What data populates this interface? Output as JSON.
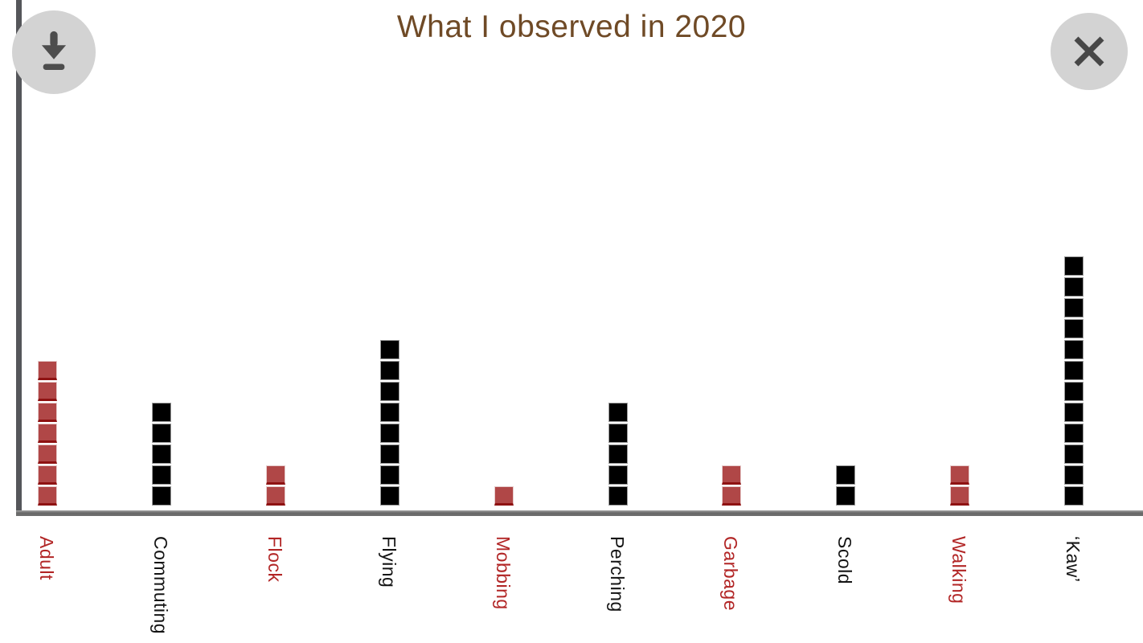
{
  "header": {
    "title": "What I observed in 2020",
    "download_button": {
      "icon": "download-icon"
    },
    "close_button": {
      "icon": "close-icon",
      "glyph": "✕"
    }
  },
  "chart_data": {
    "type": "bar",
    "subtype": "pictograph-stacked-unit-squares",
    "title": "What I observed in 2020",
    "categories": [
      "Adult",
      "Commuting",
      "Flock",
      "Flying",
      "Mobbing",
      "Perching",
      "Garbage",
      "Scold",
      "Walking",
      "‘Kaw’"
    ],
    "values": [
      7,
      5,
      2,
      8,
      1,
      5,
      2,
      2,
      2,
      12
    ],
    "colors": [
      "red",
      "black",
      "red",
      "black",
      "red",
      "black",
      "red",
      "black",
      "red",
      "black"
    ],
    "unit_per_square": 1,
    "ylim": [
      0,
      12
    ],
    "grid": false,
    "legend": false,
    "xlabel": "",
    "ylabel": "",
    "palette": {
      "red_square_fill": "#b04747",
      "red_square_edge": "#8e1212",
      "black_square_fill": "#000000",
      "black_square_edge": "#9b9b9b",
      "red_label": "#b22626",
      "black_label": "#141414",
      "title_brown": "#6f4a26",
      "axis_vertical_gray": "#55565a",
      "axis_horizontal_gray": "#6e6e6e",
      "button_circle_gray": "#d3d3d3",
      "button_icon_gray": "#4d4d4d"
    }
  }
}
